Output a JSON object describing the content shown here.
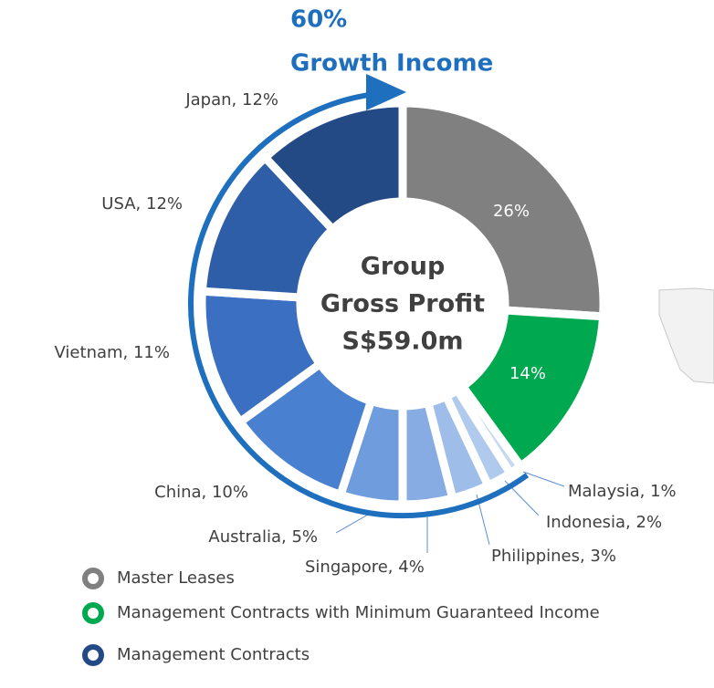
{
  "chart_data": {
    "type": "donut",
    "annotation": {
      "value": 60,
      "label": "60%",
      "text": "Growth Income"
    },
    "center_text": [
      "Group",
      "Gross Profit",
      "S$59.0m"
    ],
    "categories": [
      null,
      null,
      "Malaysia",
      "Indonesia",
      "Philippines",
      "Singapore",
      "Australia",
      "China",
      "Vietnam",
      "USA",
      "Japan"
    ],
    "values": [
      26,
      14,
      1,
      2,
      3,
      4,
      5,
      10,
      11,
      12,
      12
    ],
    "value_labels": [
      "26%",
      "14%",
      "Malaysia, 1%",
      "Indonesia, 2%",
      "Philippines, 3%",
      "Singapore, 4%",
      "Australia, 5%",
      "China, 10%",
      "Vietnam, 11%",
      "USA, 12%",
      "Japan, 12%"
    ],
    "colors": [
      "#808080",
      "#00a84f",
      "#c6d9f1",
      "#b0caee",
      "#9fbde9",
      "#86ace3",
      "#6f9cdc",
      "#4a80d0",
      "#3a6fc1",
      "#2f5ea8",
      "#234a85"
    ],
    "legend": [
      {
        "name": "Master Leases",
        "color": "#808080"
      },
      {
        "name": "Management Contracts with Minimum Guaranteed Income",
        "color": "#00a84f"
      },
      {
        "name": "Management Contracts",
        "color": "#234a85"
      }
    ]
  }
}
